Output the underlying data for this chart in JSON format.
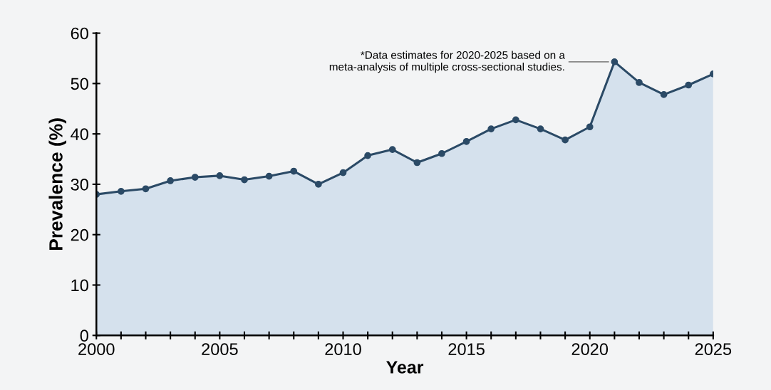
{
  "chart_data": {
    "type": "area",
    "xlabel": "Year",
    "ylabel": "Prevalence (%)",
    "x": [
      2000,
      2001,
      2002,
      2003,
      2004,
      2005,
      2006,
      2007,
      2008,
      2009,
      2010,
      2011,
      2012,
      2013,
      2014,
      2015,
      2016,
      2017,
      2018,
      2019,
      2020,
      2021,
      2022,
      2023,
      2024,
      2025
    ],
    "series": [
      {
        "color": "#2b4a66",
        "values": [
          28.0,
          28.6,
          29.1,
          30.7,
          31.4,
          31.7,
          30.9,
          31.6,
          32.6,
          30.0,
          32.3,
          35.7,
          36.9,
          34.3,
          36.1,
          38.5,
          41.0,
          42.8,
          41.0,
          38.8,
          41.4,
          54.3,
          50.2,
          47.8,
          49.7,
          51.9
        ]
      }
    ],
    "xlim": [
      2000,
      2025
    ],
    "xticks": [
      2000,
      {
        "value": 2001,
        "label": null
      },
      {
        "value": 2002,
        "label": null
      },
      {
        "value": 2003,
        "label": null
      },
      {
        "value": 2004,
        "label": null
      },
      2005,
      {
        "value": 2006,
        "label": null
      },
      {
        "value": 2007,
        "label": null
      },
      {
        "value": 2008,
        "label": null
      },
      {
        "value": 2009,
        "label": null
      },
      2010,
      {
        "value": 2011,
        "label": null
      },
      {
        "value": 2012,
        "label": null
      },
      {
        "value": 2013,
        "label": null
      },
      {
        "value": 2014,
        "label": null
      },
      2015,
      {
        "value": 2016,
        "label": null
      },
      {
        "value": 2017,
        "label": null
      },
      {
        "value": 2018,
        "label": null
      },
      {
        "value": 2019,
        "label": null
      },
      2020,
      {
        "value": 2021,
        "label": null
      },
      {
        "value": 2022,
        "label": null
      },
      {
        "value": 2023,
        "label": null
      },
      {
        "value": 2024,
        "label": null
      },
      2025
    ],
    "ylim": [
      0,
      60
    ],
    "yticks": [
      0,
      10,
      20,
      30,
      40,
      50,
      60
    ],
    "marker": "circle",
    "line_style": "solid",
    "grid": false,
    "annotations": [
      {
        "text": "*Data estimates for 2020-2025 based on a\nmeta-analysis of multiple cross-sectional studies.",
        "x": 2021,
        "y": 54.3
      }
    ]
  }
}
